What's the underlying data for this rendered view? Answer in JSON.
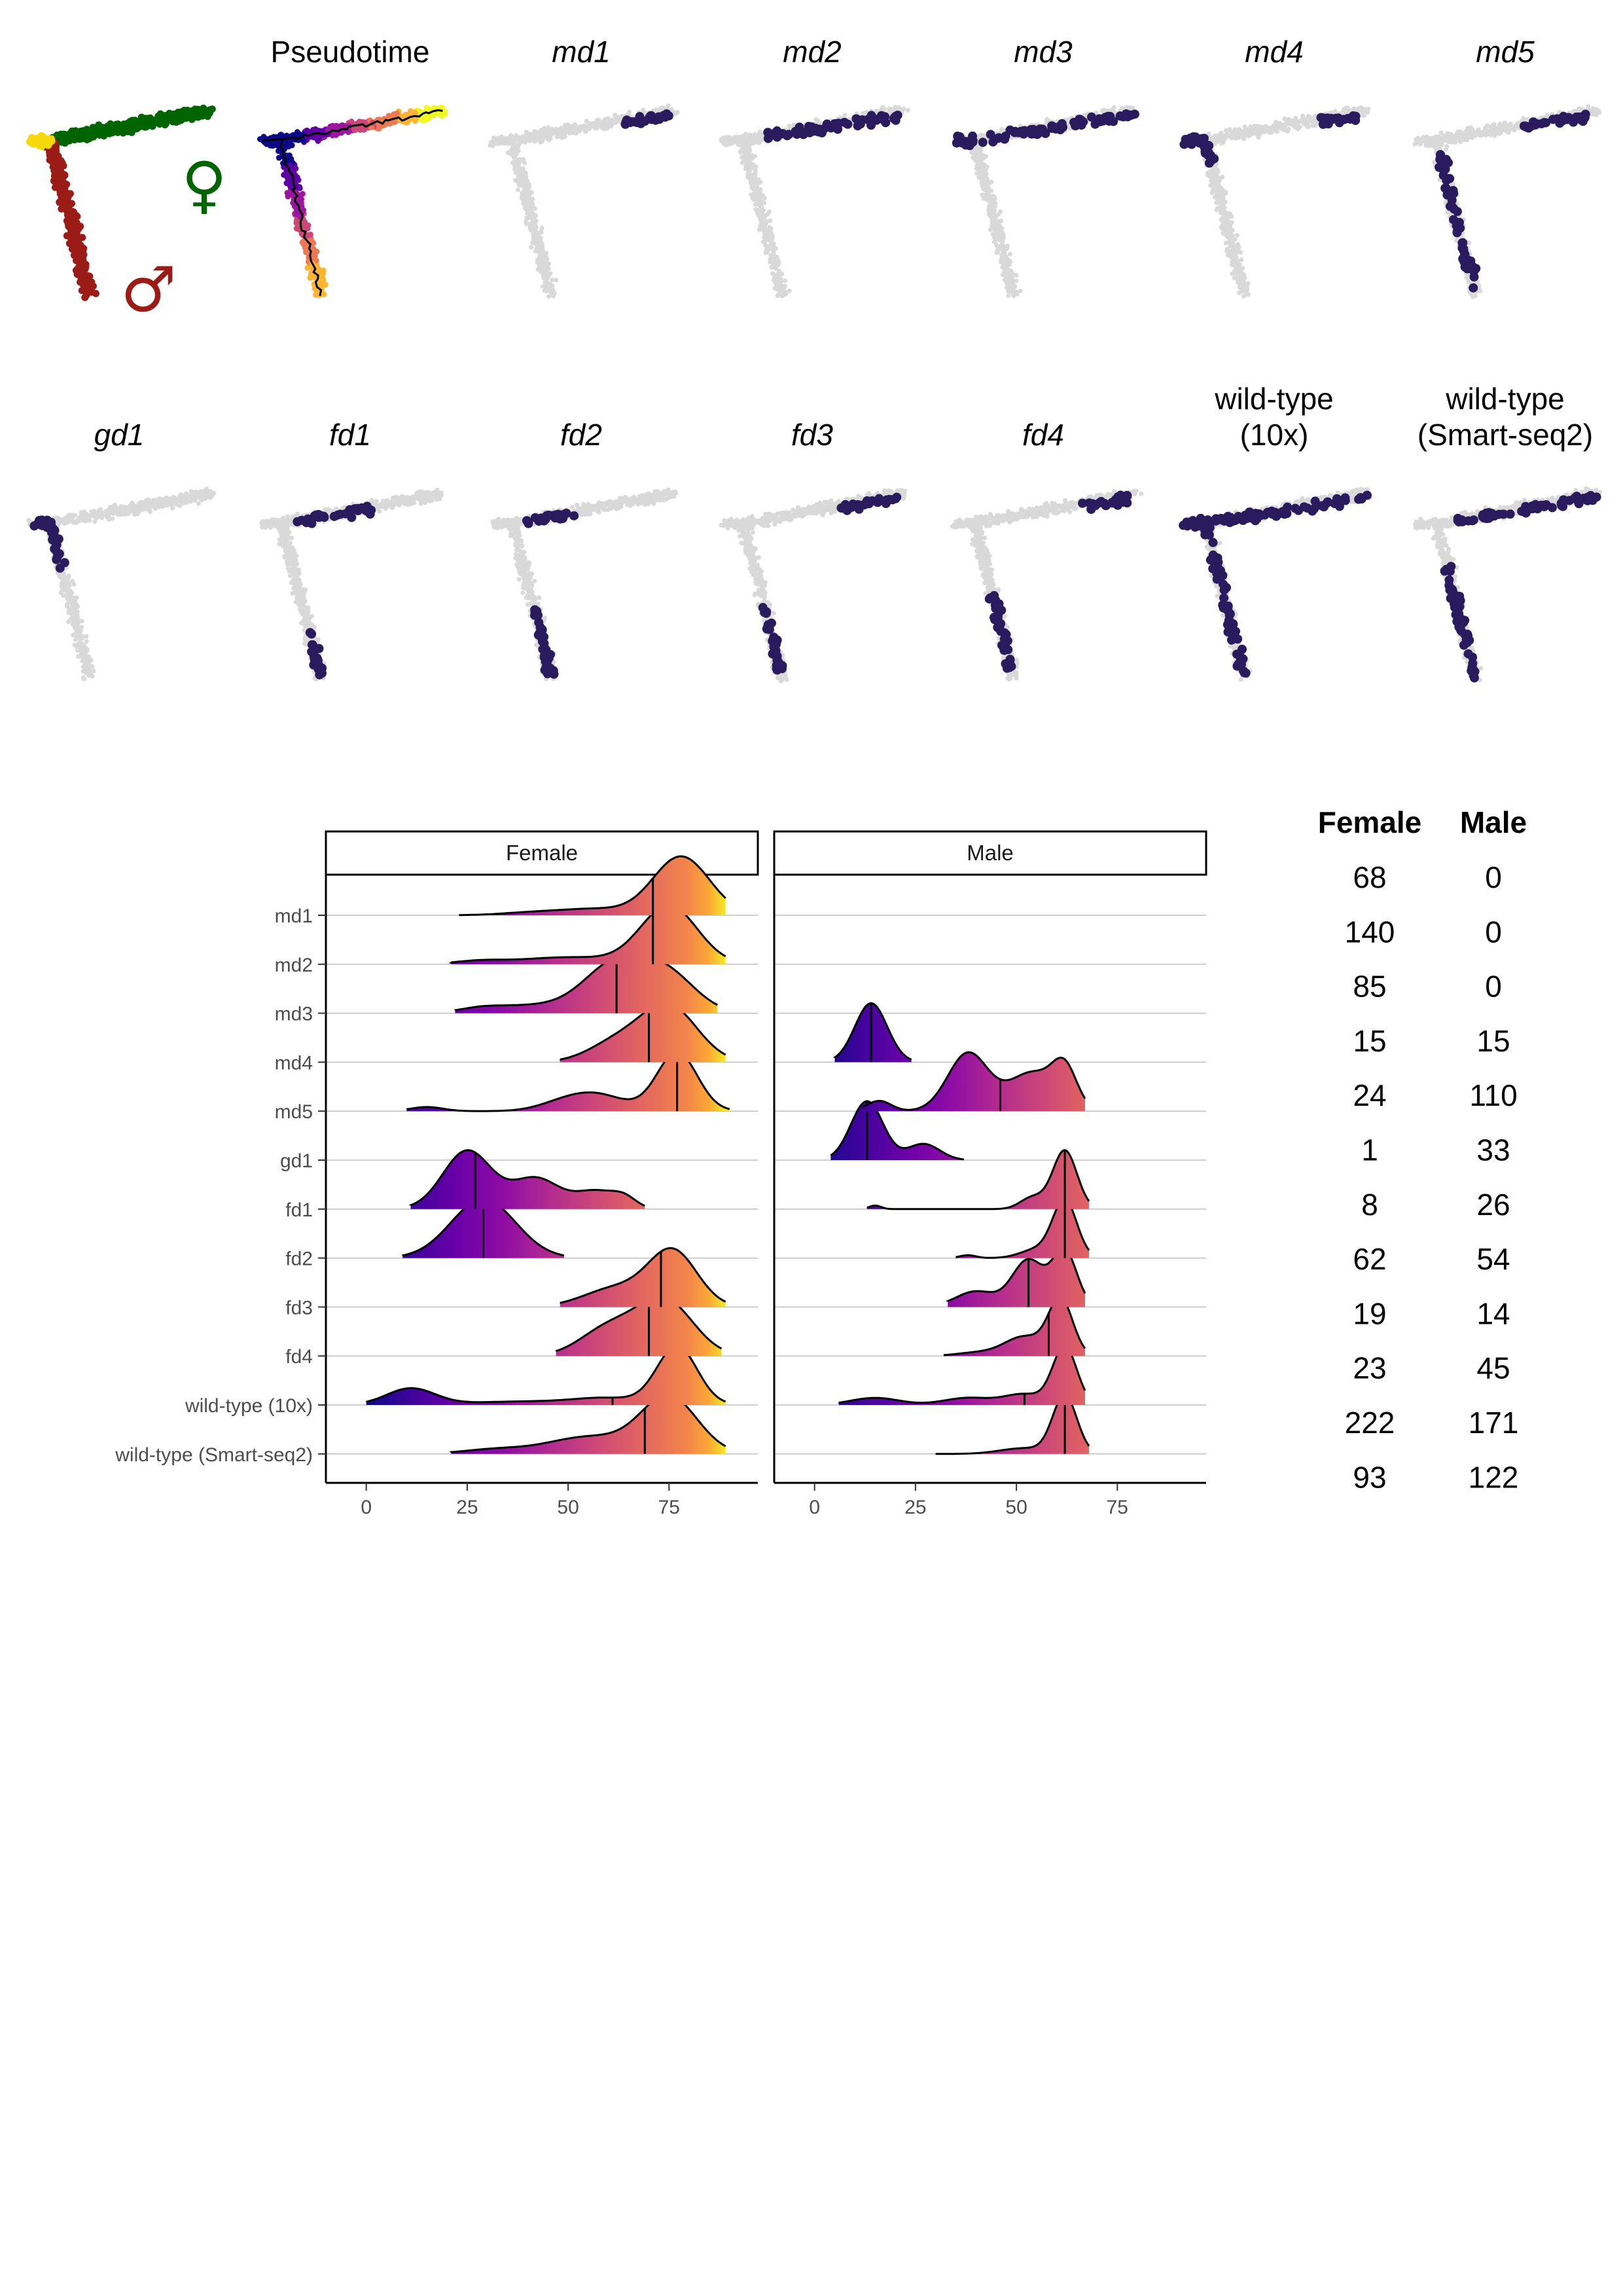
{
  "umap_panels": [
    {
      "id": "sex",
      "title": "",
      "italic": false,
      "type": "sex"
    },
    {
      "id": "pseudotime",
      "title": "Pseudotime",
      "italic": false,
      "type": "pseudotime"
    },
    {
      "id": "md1",
      "title": "md1",
      "italic": true,
      "type": "highlight",
      "branches": {
        "female": [
          0.7,
          0.98
        ],
        "male": [
          0.0,
          0.0
        ],
        "stem": false
      }
    },
    {
      "id": "md2",
      "title": "md2",
      "italic": true,
      "type": "highlight",
      "branches": {
        "female": [
          0.12,
          1.0
        ],
        "male": [
          0.0,
          0.0
        ],
        "stem": false
      }
    },
    {
      "id": "md3",
      "title": "md3",
      "italic": true,
      "type": "highlight",
      "branches": {
        "female": [
          0.0,
          1.0
        ],
        "male": [
          0.0,
          0.0
        ],
        "stem": true
      }
    },
    {
      "id": "md4",
      "title": "md4",
      "italic": true,
      "type": "highlight",
      "branches": {
        "female": [
          0.72,
          0.96
        ],
        "male": [
          0.0,
          0.12
        ],
        "stem": true
      }
    },
    {
      "id": "md5",
      "title": "md5",
      "italic": true,
      "type": "highlight",
      "branches": {
        "female": [
          0.55,
          0.95
        ],
        "male": [
          0.1,
          0.95
        ],
        "stem": false
      }
    },
    {
      "id": "gd1",
      "title": "gd1",
      "italic": true,
      "type": "highlight",
      "branches": {
        "female": [
          0.0,
          0.0
        ],
        "male": [
          0.0,
          0.3
        ],
        "stem": true
      }
    },
    {
      "id": "fd1",
      "title": "fd1",
      "italic": true,
      "type": "highlight",
      "branches": {
        "female": [
          0.12,
          0.55
        ],
        "male": [
          0.7,
          0.98
        ],
        "stem": false
      }
    },
    {
      "id": "fd2",
      "title": "fd2",
      "italic": true,
      "type": "highlight",
      "branches": {
        "female": [
          0.1,
          0.4
        ],
        "male": [
          0.55,
          1.0
        ],
        "stem": false
      }
    },
    {
      "id": "fd3",
      "title": "fd3",
      "italic": true,
      "type": "highlight",
      "branches": {
        "female": [
          0.6,
          0.95
        ],
        "male": [
          0.55,
          0.95
        ],
        "stem": false
      }
    },
    {
      "id": "fd4",
      "title": "fd4",
      "italic": true,
      "type": "highlight",
      "branches": {
        "female": [
          0.7,
          0.95
        ],
        "male": [
          0.45,
          0.95
        ],
        "stem": false
      }
    },
    {
      "id": "wt10x",
      "title": "wild-type\n(10x)",
      "italic": false,
      "type": "highlight",
      "branches": {
        "female": [
          0.0,
          1.0
        ],
        "male": [
          0.0,
          1.0
        ],
        "stem": true
      }
    },
    {
      "id": "wtss2",
      "title": "wild-type\n(Smart-seq2)",
      "italic": false,
      "type": "highlight",
      "branches": {
        "female": [
          0.12,
          1.0
        ],
        "male": [
          0.3,
          1.0
        ],
        "stem": false
      }
    }
  ],
  "sex_symbols": {
    "female": "♀",
    "male": "♂"
  },
  "colors": {
    "female_branch": "#006400",
    "male_branch": "#9b1c16",
    "stem": "#f5d90a",
    "background_cells": "#d9d9d9",
    "highlight": "#2a1a5e",
    "strip_border": "#000000",
    "grid": "#bfbfbf"
  },
  "chart_data": {
    "type": "ridgeline",
    "facets": [
      "Female",
      "Male"
    ],
    "categories": [
      "md1",
      "md2",
      "md3",
      "md4",
      "md5",
      "gd1",
      "fd1",
      "fd2",
      "fd3",
      "fd4",
      "wild-type (10x)",
      "wild-type (Smart-seq2)"
    ],
    "xticks": [
      0,
      25,
      50,
      75
    ],
    "xlim": [
      -10,
      97
    ],
    "xlabel": "",
    "ylabel": "",
    "fill": "pseudotime (plasma colormap)",
    "ridges": {
      "Female": [
        {
          "min": 23,
          "max": 89,
          "median": 71,
          "peaks": [
            [
              78,
              1.0,
              7
            ],
            [
              42,
              0.05,
              8
            ],
            [
              57,
              0.1,
              8
            ]
          ]
        },
        {
          "min": 21,
          "max": 89,
          "median": 71,
          "peaks": [
            [
              75,
              1.0,
              7
            ],
            [
              50,
              0.12,
              12
            ],
            [
              28,
              0.05,
              6
            ]
          ]
        },
        {
          "min": 22,
          "max": 87,
          "median": 62,
          "peaks": [
            [
              62,
              0.8,
              8
            ],
            [
              75,
              0.55,
              7
            ],
            [
              40,
              0.12,
              10
            ],
            [
              28,
              0.05,
              5
            ]
          ]
        },
        {
          "min": 48,
          "max": 89,
          "median": 70,
          "peaks": [
            [
              75,
              1.0,
              7
            ],
            [
              62,
              0.35,
              7
            ]
          ]
        },
        {
          "min": 10,
          "max": 90,
          "median": 77,
          "peaks": [
            [
              77,
              1.0,
              5
            ],
            [
              57,
              0.28,
              7
            ],
            [
              48,
              0.1,
              6
            ],
            [
              15,
              0.07,
              4
            ]
          ]
        },
        null,
        {
          "min": 11,
          "max": 69,
          "median": 27,
          "peaks": [
            [
              25,
              0.95,
              6
            ],
            [
              42,
              0.5,
              6
            ],
            [
              57,
              0.28,
              5
            ],
            [
              64,
              0.15,
              3
            ]
          ]
        },
        {
          "min": 9,
          "max": 49,
          "median": 29,
          "peaks": [
            [
              29,
              1.0,
              8
            ]
          ]
        },
        {
          "min": 48,
          "max": 89,
          "median": 73,
          "peaks": [
            [
              76,
              1.0,
              6
            ],
            [
              62,
              0.35,
              8
            ]
          ]
        },
        {
          "min": 47,
          "max": 88,
          "median": 70,
          "peaks": [
            [
              74,
              1.0,
              7
            ],
            [
              60,
              0.5,
              7
            ]
          ]
        },
        {
          "min": 0,
          "max": 89,
          "median": 61,
          "peaks": [
            [
              77,
              1.0,
              5
            ],
            [
              11,
              0.28,
              6
            ],
            [
              40,
              0.06,
              15
            ],
            [
              60,
              0.1,
              8
            ]
          ]
        },
        {
          "min": 21,
          "max": 89,
          "median": 69,
          "peaks": [
            [
              75,
              1.0,
              7
            ],
            [
              55,
              0.3,
              10
            ],
            [
              32,
              0.08,
              8
            ]
          ]
        }
      ],
      "Male": [
        null,
        null,
        null,
        {
          "min": 5,
          "max": 24,
          "median": 14,
          "peaks": [
            [
              14,
              1.0,
              4
            ]
          ]
        },
        {
          "min": 12,
          "max": 67,
          "median": 46,
          "peaks": [
            [
              38,
              0.45,
              5
            ],
            [
              54,
              0.3,
              6
            ],
            [
              62,
              0.28,
              3
            ],
            [
              16,
              0.08,
              3
            ]
          ]
        },
        {
          "min": 4,
          "max": 37,
          "median": 13,
          "peaks": [
            [
              13,
              0.8,
              4
            ],
            [
              27,
              0.22,
              4
            ]
          ]
        },
        {
          "min": 13,
          "max": 68,
          "median": 62,
          "peaks": [
            [
              62,
              1.0,
              3
            ],
            [
              54,
              0.2,
              3
            ],
            [
              15,
              0.06,
              1.5
            ]
          ]
        },
        {
          "min": 35,
          "max": 68,
          "median": 62,
          "peaks": [
            [
              62,
              1.0,
              3
            ],
            [
              55,
              0.15,
              4
            ],
            [
              38,
              0.05,
              2
            ]
          ]
        },
        {
          "min": 33,
          "max": 67,
          "median": 53,
          "peaks": [
            [
              53,
              0.6,
              4
            ],
            [
              62,
              0.7,
              3
            ],
            [
              40,
              0.2,
              5
            ]
          ]
        },
        {
          "min": 32,
          "max": 67,
          "median": 58,
          "peaks": [
            [
              61,
              0.85,
              3
            ],
            [
              52,
              0.3,
              5
            ],
            [
              40,
              0.05,
              5
            ]
          ]
        },
        {
          "min": 6,
          "max": 67,
          "median": 52,
          "peaks": [
            [
              62,
              0.65,
              3
            ],
            [
              15,
              0.08,
              6
            ],
            [
              38,
              0.08,
              6
            ],
            [
              52,
              0.12,
              5
            ]
          ]
        },
        {
          "min": 30,
          "max": 68,
          "median": 62,
          "peaks": [
            [
              62,
              1.0,
              3
            ],
            [
              52,
              0.1,
              6
            ]
          ]
        }
      ]
    }
  },
  "counts": {
    "headers": [
      "Female",
      "Male"
    ],
    "rows": [
      [
        "68",
        "0"
      ],
      [
        "140",
        "0"
      ],
      [
        "85",
        "0"
      ],
      [
        "15",
        "15"
      ],
      [
        "24",
        "110"
      ],
      [
        "1",
        "33"
      ],
      [
        "8",
        "26"
      ],
      [
        "62",
        "54"
      ],
      [
        "19",
        "14"
      ],
      [
        "23",
        "45"
      ],
      [
        "222",
        "171"
      ],
      [
        "93",
        "122"
      ]
    ]
  }
}
